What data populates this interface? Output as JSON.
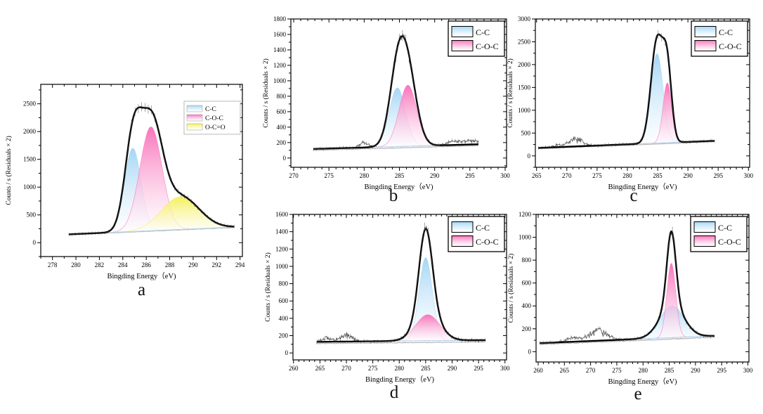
{
  "figure": {
    "background": "#ffffff",
    "style_colors": {
      "envelope": "#000000",
      "baseline": "#b5d7ee",
      "residual": "#b0b0b0",
      "noise_trace": "#2e2e2e",
      "frame": "#000000"
    }
  },
  "chart_data": [
    {
      "panel_label": "a",
      "type": "area",
      "xlabel": "Bingding Energy（eV)",
      "ylabel": "Counts / s (Residuals × 2)",
      "xlim": [
        277.0,
        294.2
      ],
      "ylim": [
        -250,
        2850
      ],
      "xticks": [
        278,
        280,
        282,
        284,
        286,
        288,
        290,
        292,
        294
      ],
      "yticks": [
        0,
        500,
        1000,
        1500,
        2000,
        2500
      ],
      "x_minor_step": 1,
      "y_minor_step": 250,
      "data_range": [
        279.4,
        293.5
      ],
      "baseline": {
        "start": 150,
        "end": 280
      },
      "residual_offset": -8,
      "envelope_boost": 1.0,
      "noise_amp": 14,
      "noise_bumps": [],
      "legend_labels": [
        "C-C",
        "C-O-C",
        "O-C=O"
      ],
      "peaks": [
        {
          "label": "C-C",
          "color": "#a5d6f5",
          "center": 284.85,
          "amplitude": 1500,
          "sigma": 0.7
        },
        {
          "label": "C-O-C",
          "color": "#f973bb",
          "center": 286.4,
          "amplitude": 1870,
          "sigma": 0.95
        },
        {
          "label": "O-C=O",
          "color": "#f4f05c",
          "center": 288.9,
          "amplitude": 590,
          "sigma": 1.6
        }
      ]
    },
    {
      "panel_label": "b",
      "type": "area",
      "xlabel": "Bingding Energy（eV)",
      "ylabel": "Counts / s (Residuals × 2)",
      "xlim": [
        269.6,
        300.2
      ],
      "ylim": [
        -120,
        1800
      ],
      "xticks": [
        270,
        275,
        280,
        285,
        290,
        295,
        300
      ],
      "yticks": [
        0,
        200,
        400,
        600,
        800,
        1000,
        1200,
        1400,
        1600,
        1800
      ],
      "x_minor_step": 1,
      "y_minor_step": 100,
      "data_range": [
        272.8,
        296.2
      ],
      "baseline": {
        "start": 118,
        "end": 178
      },
      "residual_offset": -18,
      "envelope_boost": 1.12,
      "noise_amp": 22,
      "noise_bumps": [
        {
          "center": 279.9,
          "height": 60,
          "width": 0.6
        },
        {
          "center": 295.2,
          "height": 45,
          "width": 1.6
        },
        {
          "center": 292.6,
          "height": 30,
          "width": 1.0
        }
      ],
      "legend_labels": [
        "C-C",
        "C-O-C"
      ],
      "peaks": [
        {
          "label": "C-C",
          "color": "#a5d6f5",
          "center": 284.7,
          "amplitude": 760,
          "sigma": 1.15
        },
        {
          "label": "C-O-C",
          "color": "#f973bb",
          "center": 286.2,
          "amplitude": 790,
          "sigma": 1.25
        }
      ]
    },
    {
      "panel_label": "c",
      "type": "area",
      "xlabel": "Bingding Energy（eV)",
      "ylabel": "Counts / s (Residuals × 2)",
      "xlim": [
        264.8,
        300.2
      ],
      "ylim": [
        -250,
        3000
      ],
      "xticks": [
        265,
        270,
        275,
        280,
        285,
        290,
        295,
        300
      ],
      "yticks": [
        0,
        500,
        1000,
        1500,
        2000,
        2500,
        3000
      ],
      "x_minor_step": 1,
      "y_minor_step": 250,
      "data_range": [
        265.3,
        294.4
      ],
      "baseline": {
        "start": 175,
        "end": 330
      },
      "residual_offset": -20,
      "envelope_boost": 1.15,
      "noise_amp": 30,
      "noise_bumps": [
        {
          "center": 271.6,
          "height": 160,
          "width": 1.1
        },
        {
          "center": 268.8,
          "height": 50,
          "width": 0.9
        }
      ],
      "legend_labels": [
        "C-C",
        "C-O-C"
      ],
      "peaks": [
        {
          "label": "C-C",
          "color": "#a5d6f5",
          "center": 284.9,
          "amplitude": 1960,
          "sigma": 1.0
        },
        {
          "label": "C-O-C",
          "color": "#f973bb",
          "center": 286.6,
          "amplitude": 1310,
          "sigma": 0.72
        }
      ]
    },
    {
      "panel_label": "d",
      "type": "area",
      "xlabel": "Bingding Energy（eV)",
      "ylabel": "Counts / s (Residuals × 2)",
      "xlim": [
        259.9,
        300.3
      ],
      "ylim": [
        -80,
        1600
      ],
      "xticks": [
        260,
        265,
        270,
        275,
        280,
        285,
        290,
        295,
        300
      ],
      "yticks": [
        0,
        200,
        400,
        600,
        800,
        1000,
        1200,
        1400,
        1600
      ],
      "x_minor_step": 1,
      "y_minor_step": 100,
      "data_range": [
        264.4,
        296.3
      ],
      "baseline": {
        "start": 128,
        "end": 148
      },
      "residual_offset": -20,
      "envelope_boost": 1.03,
      "noise_amp": 26,
      "noise_bumps": [
        {
          "center": 269.9,
          "height": 75,
          "width": 1.2
        },
        {
          "center": 266.3,
          "height": 40,
          "width": 0.9
        }
      ],
      "legend_labels": [
        "C-C",
        "C-O-C"
      ],
      "peaks": [
        {
          "label": "C-C",
          "color": "#a5d6f5",
          "center": 285.0,
          "amplitude": 960,
          "sigma": 1.25
        },
        {
          "label": "C-O-C",
          "color": "#f973bb",
          "center": 285.4,
          "amplitude": 300,
          "sigma": 2.3
        }
      ]
    },
    {
      "panel_label": "e",
      "type": "area",
      "xlabel": "Bingding Energy（eV)",
      "ylabel": "Counts / s (Residuals × 2)",
      "xlim": [
        259.6,
        300.2
      ],
      "ylim": [
        -90,
        1200
      ],
      "xticks": [
        260,
        265,
        270,
        275,
        280,
        285,
        290,
        295,
        300
      ],
      "yticks": [
        0,
        200,
        400,
        600,
        800,
        1000,
        1200
      ],
      "x_minor_step": 1,
      "y_minor_step": 100,
      "data_range": [
        260.3,
        293.6
      ],
      "baseline": {
        "start": 75,
        "end": 138
      },
      "residual_offset": -12,
      "envelope_boost": 1.0,
      "noise_amp": 18,
      "noise_bumps": [
        {
          "center": 271.4,
          "height": 80,
          "width": 1.8
        },
        {
          "center": 266.5,
          "height": 30,
          "width": 1.2
        }
      ],
      "legend_labels": [
        "C-C",
        "C-O-C"
      ],
      "peaks": [
        {
          "label": "C-C",
          "color": "#a5d6f5",
          "center": 285.5,
          "amplitude": 280,
          "sigma": 2.3
        },
        {
          "label": "C-O-C",
          "color": "#f973bb",
          "center": 285.4,
          "amplitude": 650,
          "sigma": 0.85
        }
      ]
    }
  ]
}
